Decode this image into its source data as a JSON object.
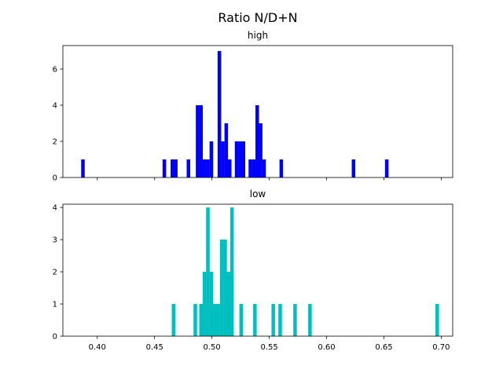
{
  "chart_data": {
    "suptitle": "Ratio N/D+N",
    "type": "bar",
    "panels": [
      {
        "title": "high",
        "color": "#0000ff",
        "bin_width": 0.0031,
        "xlim": [
          0.37,
          0.71
        ],
        "ylim": [
          0,
          7.3
        ],
        "yticks": [
          0,
          2,
          4,
          6
        ],
        "x_tick_labels_visible": false,
        "bars": [
          {
            "x": 0.3875,
            "y": 1
          },
          {
            "x": 0.4585,
            "y": 1
          },
          {
            "x": 0.4655,
            "y": 1
          },
          {
            "x": 0.4685,
            "y": 1
          },
          {
            "x": 0.4795,
            "y": 1
          },
          {
            "x": 0.4875,
            "y": 4
          },
          {
            "x": 0.4905,
            "y": 4
          },
          {
            "x": 0.4935,
            "y": 1
          },
          {
            "x": 0.4965,
            "y": 1
          },
          {
            "x": 0.4995,
            "y": 2
          },
          {
            "x": 0.5065,
            "y": 7
          },
          {
            "x": 0.5095,
            "y": 2
          },
          {
            "x": 0.5125,
            "y": 3
          },
          {
            "x": 0.5155,
            "y": 1
          },
          {
            "x": 0.5215,
            "y": 2
          },
          {
            "x": 0.5245,
            "y": 2
          },
          {
            "x": 0.5275,
            "y": 2
          },
          {
            "x": 0.5335,
            "y": 1
          },
          {
            "x": 0.5365,
            "y": 1
          },
          {
            "x": 0.5395,
            "y": 4
          },
          {
            "x": 0.5425,
            "y": 3
          },
          {
            "x": 0.5455,
            "y": 1
          },
          {
            "x": 0.5605,
            "y": 1
          },
          {
            "x": 0.6235,
            "y": 1
          },
          {
            "x": 0.6525,
            "y": 1
          }
        ]
      },
      {
        "title": "low",
        "color": "#00bfbf",
        "bin_width": 0.0031,
        "xlim": [
          0.37,
          0.71
        ],
        "ylim": [
          0,
          4.1
        ],
        "yticks": [
          0,
          1,
          2,
          3,
          4
        ],
        "xticks": [
          0.4,
          0.45,
          0.5,
          0.55,
          0.6,
          0.65,
          0.7
        ],
        "xtick_labels": [
          "0.40",
          "0.45",
          "0.50",
          "0.55",
          "0.60",
          "0.65",
          "0.70"
        ],
        "bars": [
          {
            "x": 0.4665,
            "y": 1
          },
          {
            "x": 0.4855,
            "y": 1
          },
          {
            "x": 0.4905,
            "y": 1
          },
          {
            "x": 0.4935,
            "y": 2
          },
          {
            "x": 0.4965,
            "y": 4
          },
          {
            "x": 0.4995,
            "y": 2
          },
          {
            "x": 0.5025,
            "y": 1
          },
          {
            "x": 0.5055,
            "y": 1
          },
          {
            "x": 0.5085,
            "y": 3
          },
          {
            "x": 0.5115,
            "y": 3
          },
          {
            "x": 0.5145,
            "y": 2
          },
          {
            "x": 0.5175,
            "y": 4
          },
          {
            "x": 0.5255,
            "y": 1
          },
          {
            "x": 0.5375,
            "y": 1
          },
          {
            "x": 0.5535,
            "y": 1
          },
          {
            "x": 0.5595,
            "y": 1
          },
          {
            "x": 0.5725,
            "y": 1
          },
          {
            "x": 0.5855,
            "y": 1
          },
          {
            "x": 0.6965,
            "y": 1
          }
        ]
      }
    ]
  }
}
